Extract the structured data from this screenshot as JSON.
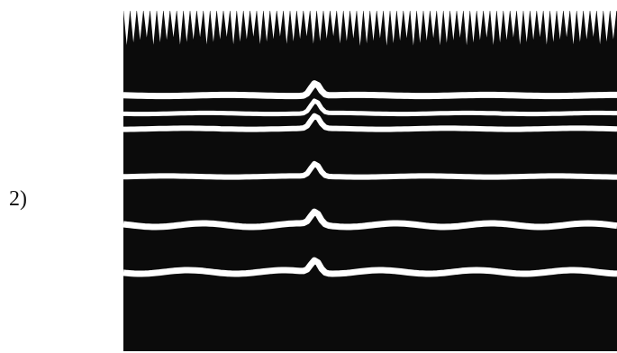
{
  "figure": {
    "label": "2)"
  }
}
